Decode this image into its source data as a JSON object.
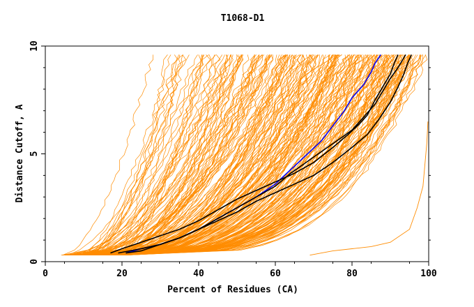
{
  "chart_data": {
    "type": "line",
    "title": "T1068-D1",
    "xlabel": "Percent of Residues (CA)",
    "ylabel": "Distance Cutoff, A",
    "xlim": [
      0,
      100
    ],
    "ylim": [
      0,
      10
    ],
    "xticks": [
      0,
      20,
      40,
      60,
      80,
      100
    ],
    "yticks": [
      0,
      5,
      10
    ],
    "grid": false,
    "colors": {
      "background_lines": "#ff8c00",
      "highlight": "#0000ff",
      "black_lines": "#000000"
    },
    "highlight_series": [
      {
        "color": "#0000ff",
        "x": [
          21,
          25,
          30,
          35,
          40,
          45,
          50,
          55,
          60,
          63,
          66,
          69,
          72,
          75,
          78,
          80,
          83,
          85,
          86,
          87.5
        ],
        "y": [
          0.4,
          0.6,
          0.8,
          1.1,
          1.5,
          2.0,
          2.5,
          3.0,
          3.6,
          4.1,
          4.6,
          5.1,
          5.6,
          6.3,
          7.0,
          7.6,
          8.2,
          8.8,
          9.2,
          9.6
        ]
      },
      {
        "color": "#000000",
        "x": [
          17,
          20,
          25,
          30,
          35,
          40,
          45,
          50,
          55,
          60,
          65,
          70,
          75,
          79,
          82,
          84,
          86,
          88,
          90,
          91,
          92
        ],
        "y": [
          0.4,
          0.6,
          0.9,
          1.2,
          1.5,
          1.9,
          2.4,
          2.9,
          3.3,
          3.7,
          4.1,
          4.6,
          5.3,
          5.9,
          6.4,
          6.8,
          7.5,
          8.1,
          8.7,
          9.2,
          9.6
        ]
      },
      {
        "color": "#000000",
        "x": [
          19,
          25,
          30,
          35,
          40,
          45,
          50,
          55,
          60,
          64,
          68,
          72,
          76,
          80,
          83,
          86,
          88,
          90,
          92,
          93,
          94
        ],
        "y": [
          0.4,
          0.6,
          0.8,
          1.1,
          1.5,
          2.0,
          2.5,
          3.0,
          3.5,
          4.1,
          4.6,
          5.1,
          5.6,
          6.1,
          6.7,
          7.3,
          7.9,
          8.5,
          9.0,
          9.3,
          9.6
        ]
      },
      {
        "color": "#000000",
        "x": [
          21,
          25,
          30,
          35,
          40,
          45,
          50,
          55,
          60,
          65,
          70,
          75,
          80,
          84,
          87,
          90,
          92,
          93.5,
          94.5,
          95.5
        ],
        "y": [
          0.4,
          0.5,
          0.8,
          1.1,
          1.5,
          1.9,
          2.3,
          2.8,
          3.2,
          3.6,
          4.0,
          4.6,
          5.3,
          5.9,
          6.6,
          7.4,
          8.1,
          8.7,
          9.2,
          9.6
        ]
      }
    ],
    "outlier_series": {
      "color": "#ff8c00",
      "x": [
        69,
        75,
        80,
        85,
        90,
        95,
        97,
        98.5,
        99.5,
        99.8
      ],
      "y": [
        0.3,
        0.5,
        0.6,
        0.7,
        0.9,
        1.5,
        2.5,
        3.5,
        5.5,
        6.5
      ]
    }
  }
}
